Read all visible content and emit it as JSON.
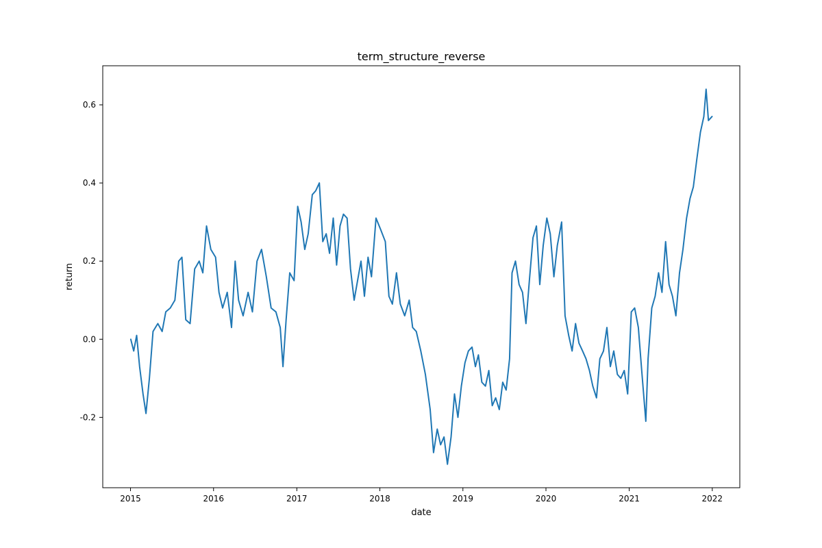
{
  "chart_data": {
    "type": "line",
    "title": "term_structure_reverse",
    "xlabel": "date",
    "ylabel": "return",
    "xlim": [
      "2014-09-01",
      "2022-05-02"
    ],
    "ylim": [
      -0.38,
      0.7
    ],
    "x_ticks": [
      {
        "date": "2015-01-01",
        "label": "2015"
      },
      {
        "date": "2016-01-01",
        "label": "2016"
      },
      {
        "date": "2017-01-01",
        "label": "2017"
      },
      {
        "date": "2018-01-01",
        "label": "2018"
      },
      {
        "date": "2019-01-01",
        "label": "2019"
      },
      {
        "date": "2020-01-01",
        "label": "2020"
      },
      {
        "date": "2021-01-01",
        "label": "2021"
      },
      {
        "date": "2022-01-01",
        "label": "2022"
      }
    ],
    "y_ticks": [
      {
        "value": -0.2,
        "label": "-0.2"
      },
      {
        "value": 0.0,
        "label": "0.0"
      },
      {
        "value": 0.2,
        "label": "0.2"
      },
      {
        "value": 0.4,
        "label": "0.4"
      },
      {
        "value": 0.6,
        "label": "0.6"
      }
    ],
    "grid": false,
    "series": [
      {
        "color": "#1f77b4",
        "points": [
          [
            "2015-01-02",
            0.0
          ],
          [
            "2015-01-15",
            -0.03
          ],
          [
            "2015-01-28",
            0.01
          ],
          [
            "2015-02-10",
            -0.07
          ],
          [
            "2015-02-25",
            -0.14
          ],
          [
            "2015-03-10",
            -0.19
          ],
          [
            "2015-03-25",
            -0.1
          ],
          [
            "2015-04-10",
            0.02
          ],
          [
            "2015-05-01",
            0.04
          ],
          [
            "2015-05-20",
            0.02
          ],
          [
            "2015-06-05",
            0.07
          ],
          [
            "2015-06-25",
            0.08
          ],
          [
            "2015-07-15",
            0.1
          ],
          [
            "2015-08-01",
            0.2
          ],
          [
            "2015-08-15",
            0.21
          ],
          [
            "2015-09-01",
            0.05
          ],
          [
            "2015-09-20",
            0.04
          ],
          [
            "2015-10-10",
            0.18
          ],
          [
            "2015-10-30",
            0.2
          ],
          [
            "2015-11-15",
            0.17
          ],
          [
            "2015-12-01",
            0.29
          ],
          [
            "2015-12-20",
            0.23
          ],
          [
            "2016-01-10",
            0.21
          ],
          [
            "2016-01-25",
            0.12
          ],
          [
            "2016-02-10",
            0.08
          ],
          [
            "2016-03-01",
            0.12
          ],
          [
            "2016-03-20",
            0.03
          ],
          [
            "2016-04-05",
            0.2
          ],
          [
            "2016-04-20",
            0.1
          ],
          [
            "2016-05-10",
            0.06
          ],
          [
            "2016-06-01",
            0.12
          ],
          [
            "2016-06-20",
            0.07
          ],
          [
            "2016-07-10",
            0.2
          ],
          [
            "2016-07-30",
            0.23
          ],
          [
            "2016-08-20",
            0.16
          ],
          [
            "2016-09-10",
            0.08
          ],
          [
            "2016-10-01",
            0.07
          ],
          [
            "2016-10-20",
            0.03
          ],
          [
            "2016-11-01",
            -0.07
          ],
          [
            "2016-11-15",
            0.05
          ],
          [
            "2016-12-01",
            0.17
          ],
          [
            "2016-12-20",
            0.15
          ],
          [
            "2017-01-05",
            0.34
          ],
          [
            "2017-01-20",
            0.3
          ],
          [
            "2017-02-05",
            0.23
          ],
          [
            "2017-02-20",
            0.27
          ],
          [
            "2017-03-10",
            0.37
          ],
          [
            "2017-03-25",
            0.38
          ],
          [
            "2017-04-10",
            0.4
          ],
          [
            "2017-04-25",
            0.25
          ],
          [
            "2017-05-10",
            0.27
          ],
          [
            "2017-05-25",
            0.22
          ],
          [
            "2017-06-10",
            0.31
          ],
          [
            "2017-06-25",
            0.19
          ],
          [
            "2017-07-10",
            0.29
          ],
          [
            "2017-07-25",
            0.32
          ],
          [
            "2017-08-10",
            0.31
          ],
          [
            "2017-08-25",
            0.18
          ],
          [
            "2017-09-10",
            0.1
          ],
          [
            "2017-09-25",
            0.15
          ],
          [
            "2017-10-10",
            0.2
          ],
          [
            "2017-10-25",
            0.11
          ],
          [
            "2017-11-10",
            0.21
          ],
          [
            "2017-11-25",
            0.16
          ],
          [
            "2017-12-15",
            0.31
          ],
          [
            "2018-01-05",
            0.28
          ],
          [
            "2018-01-25",
            0.25
          ],
          [
            "2018-02-10",
            0.11
          ],
          [
            "2018-02-25",
            0.09
          ],
          [
            "2018-03-15",
            0.17
          ],
          [
            "2018-04-01",
            0.09
          ],
          [
            "2018-04-20",
            0.06
          ],
          [
            "2018-05-10",
            0.1
          ],
          [
            "2018-05-25",
            0.03
          ],
          [
            "2018-06-10",
            0.02
          ],
          [
            "2018-06-30",
            -0.03
          ],
          [
            "2018-07-20",
            -0.09
          ],
          [
            "2018-08-10",
            -0.18
          ],
          [
            "2018-08-25",
            -0.29
          ],
          [
            "2018-09-10",
            -0.23
          ],
          [
            "2018-09-25",
            -0.27
          ],
          [
            "2018-10-10",
            -0.25
          ],
          [
            "2018-10-25",
            -0.32
          ],
          [
            "2018-11-10",
            -0.25
          ],
          [
            "2018-11-25",
            -0.14
          ],
          [
            "2018-12-10",
            -0.2
          ],
          [
            "2018-12-25",
            -0.12
          ],
          [
            "2019-01-10",
            -0.06
          ],
          [
            "2019-01-25",
            -0.03
          ],
          [
            "2019-02-10",
            -0.02
          ],
          [
            "2019-02-25",
            -0.07
          ],
          [
            "2019-03-10",
            -0.04
          ],
          [
            "2019-03-25",
            -0.11
          ],
          [
            "2019-04-10",
            -0.12
          ],
          [
            "2019-04-25",
            -0.08
          ],
          [
            "2019-05-10",
            -0.17
          ],
          [
            "2019-05-25",
            -0.15
          ],
          [
            "2019-06-10",
            -0.18
          ],
          [
            "2019-06-25",
            -0.11
          ],
          [
            "2019-07-10",
            -0.13
          ],
          [
            "2019-07-25",
            -0.05
          ],
          [
            "2019-08-05",
            0.17
          ],
          [
            "2019-08-20",
            0.2
          ],
          [
            "2019-09-05",
            0.14
          ],
          [
            "2019-09-20",
            0.12
          ],
          [
            "2019-10-05",
            0.04
          ],
          [
            "2019-10-20",
            0.15
          ],
          [
            "2019-11-05",
            0.26
          ],
          [
            "2019-11-20",
            0.29
          ],
          [
            "2019-12-05",
            0.14
          ],
          [
            "2019-12-20",
            0.24
          ],
          [
            "2020-01-05",
            0.31
          ],
          [
            "2020-01-20",
            0.27
          ],
          [
            "2020-02-05",
            0.16
          ],
          [
            "2020-02-20",
            0.24
          ],
          [
            "2020-03-10",
            0.3
          ],
          [
            "2020-03-25",
            0.06
          ],
          [
            "2020-04-10",
            0.01
          ],
          [
            "2020-04-25",
            -0.03
          ],
          [
            "2020-05-10",
            0.04
          ],
          [
            "2020-05-25",
            -0.01
          ],
          [
            "2020-06-10",
            -0.03
          ],
          [
            "2020-06-25",
            -0.05
          ],
          [
            "2020-07-10",
            -0.08
          ],
          [
            "2020-07-25",
            -0.12
          ],
          [
            "2020-08-10",
            -0.15
          ],
          [
            "2020-08-25",
            -0.05
          ],
          [
            "2020-09-10",
            -0.03
          ],
          [
            "2020-09-25",
            0.03
          ],
          [
            "2020-10-10",
            -0.07
          ],
          [
            "2020-10-25",
            -0.03
          ],
          [
            "2020-11-10",
            -0.09
          ],
          [
            "2020-11-25",
            -0.1
          ],
          [
            "2020-12-10",
            -0.08
          ],
          [
            "2020-12-25",
            -0.14
          ],
          [
            "2021-01-10",
            0.07
          ],
          [
            "2021-01-25",
            0.08
          ],
          [
            "2021-02-10",
            0.03
          ],
          [
            "2021-02-25",
            -0.08
          ],
          [
            "2021-03-15",
            -0.21
          ],
          [
            "2021-03-25",
            -0.05
          ],
          [
            "2021-04-10",
            0.08
          ],
          [
            "2021-04-25",
            0.11
          ],
          [
            "2021-05-10",
            0.17
          ],
          [
            "2021-05-25",
            0.12
          ],
          [
            "2021-06-10",
            0.25
          ],
          [
            "2021-06-25",
            0.14
          ],
          [
            "2021-07-10",
            0.11
          ],
          [
            "2021-07-25",
            0.06
          ],
          [
            "2021-08-10",
            0.17
          ],
          [
            "2021-08-25",
            0.23
          ],
          [
            "2021-09-10",
            0.31
          ],
          [
            "2021-09-25",
            0.36
          ],
          [
            "2021-10-10",
            0.39
          ],
          [
            "2021-10-25",
            0.46
          ],
          [
            "2021-11-10",
            0.53
          ],
          [
            "2021-11-25",
            0.57
          ],
          [
            "2021-12-05",
            0.64
          ],
          [
            "2021-12-15",
            0.56
          ],
          [
            "2021-12-31",
            0.57
          ]
        ]
      }
    ]
  }
}
